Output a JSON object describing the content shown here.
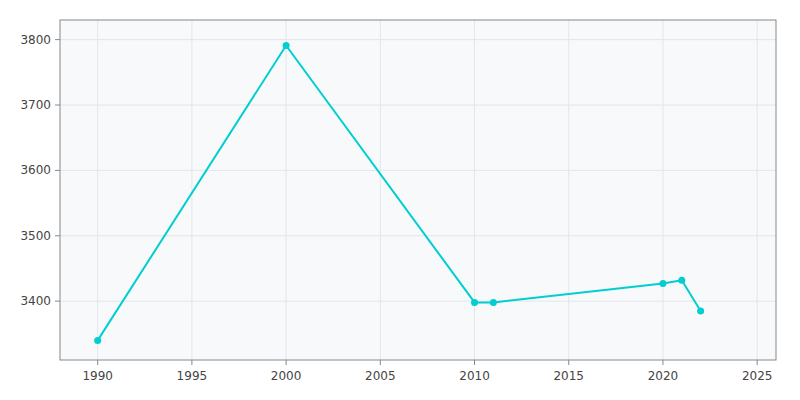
{
  "chart_data": {
    "type": "line",
    "x": [
      1990,
      2000,
      2010,
      2011,
      2020,
      2021,
      2022
    ],
    "values": [
      3340,
      3791,
      3398,
      3398,
      3427,
      3432,
      3385
    ],
    "color": "#00CED1",
    "marker": "circle",
    "xlim": [
      1988,
      2026
    ],
    "ylim": [
      3310,
      3830
    ],
    "xticks": [
      1990,
      1995,
      2000,
      2005,
      2010,
      2015,
      2020,
      2025
    ],
    "yticks": [
      3400,
      3500,
      3600,
      3700,
      3800
    ],
    "grid": true
  }
}
